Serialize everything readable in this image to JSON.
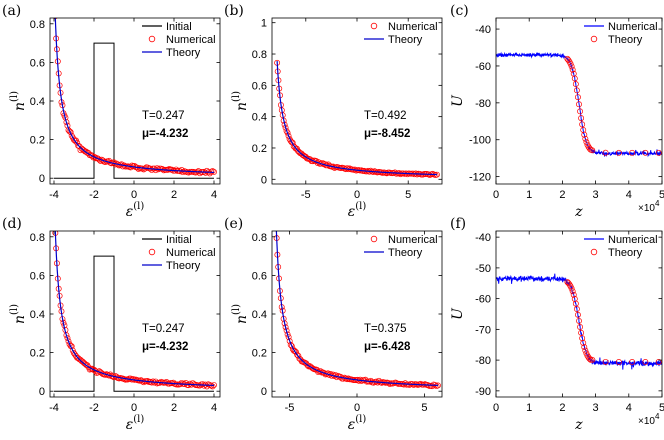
{
  "chart_data": [
    {
      "id": "a",
      "panel_label": "(a)",
      "type": "line+scatter",
      "xlabel": "ε(l)",
      "xlabel_main": "ε",
      "xlabel_sup": "(l)",
      "ylabel": "n(l)",
      "ylabel_main": "n",
      "ylabel_sup": "(l)",
      "xlim": [
        -4.2,
        4.3
      ],
      "ylim": [
        -0.03,
        0.83
      ],
      "xticks": [
        -4,
        -2,
        0,
        2,
        4
      ],
      "xtick_labels": [
        "-4",
        "-2",
        "0",
        "2",
        "4"
      ],
      "yticks": [
        0,
        0.2,
        0.4,
        0.6,
        0.8
      ],
      "ytick_labels": [
        "0",
        "0.2",
        "0.4",
        "0.6",
        "0.8"
      ],
      "theory": {
        "T": 0.247,
        "mu": -4.232,
        "xmin": -4,
        "xmax": 4
      },
      "numerical_samples": 130,
      "numerical_noise": 0.006,
      "initial": {
        "x": [
          -4,
          -2,
          -2,
          -1,
          -1,
          4
        ],
        "y": [
          0,
          0,
          0.7,
          0.7,
          0,
          0
        ]
      },
      "legend": [
        {
          "label": "Initial",
          "kind": "line",
          "color": "#000000"
        },
        {
          "label": "Numerical",
          "kind": "circle",
          "color": "#ff0000"
        },
        {
          "label": "Theory",
          "kind": "line",
          "color": "#0000cc"
        }
      ],
      "annotations": [
        "T=0.247",
        "μ=-4.232"
      ]
    },
    {
      "id": "b",
      "panel_label": "(b)",
      "type": "line+scatter",
      "xlabel": "ε(l)",
      "xlabel_main": "ε",
      "xlabel_sup": "(l)",
      "ylabel": "n(l)",
      "ylabel_main": "n",
      "ylabel_sup": "(l)",
      "xlim": [
        -8.3,
        8.3
      ],
      "ylim": [
        -0.03,
        1.03
      ],
      "xticks": [
        -5,
        0,
        5
      ],
      "xtick_labels": [
        "-5",
        "0",
        "5"
      ],
      "yticks": [
        0,
        0.2,
        0.4,
        0.6,
        0.8,
        1
      ],
      "ytick_labels": [
        "0",
        "0.2",
        "0.4",
        "0.6",
        "0.8",
        "1"
      ],
      "theory": {
        "T": 0.492,
        "mu": -8.452,
        "xmin": -7.8,
        "xmax": 7.8
      },
      "numerical_samples": 130,
      "numerical_noise": 0.005,
      "legend": [
        {
          "label": "Numerical",
          "kind": "circle",
          "color": "#ff0000"
        },
        {
          "label": "Theory",
          "kind": "line",
          "color": "#0000cc"
        }
      ],
      "annotations": [
        "T=0.492",
        "μ=-8.452"
      ]
    },
    {
      "id": "c",
      "panel_label": "(c)",
      "type": "line+scatter",
      "xlabel": "z",
      "xlabel_main": "z",
      "xlabel_sup": "",
      "ylabel": "U",
      "ylabel_main": "U",
      "ylabel_sup": "",
      "xlim": [
        0,
        50000
      ],
      "ylim": [
        -124,
        -34
      ],
      "xticks": [
        0,
        10000,
        20000,
        30000,
        40000,
        50000
      ],
      "xtick_labels": [
        "0",
        "1",
        "2",
        "3",
        "4",
        "5"
      ],
      "x_multiplier": "×10",
      "x_multiplier_exp": "4",
      "yticks": [
        -120,
        -100,
        -80,
        -60,
        -40
      ],
      "ytick_labels": [
        "-120",
        "-100",
        "-80",
        "-60",
        "-40"
      ],
      "step": {
        "left": -54,
        "right": -107.5,
        "center": 25000,
        "width": 1100
      },
      "numerical_noise": 0.8,
      "theory_samples": 23,
      "legend": [
        {
          "label": "Numerical",
          "kind": "line",
          "color": "#0000ff"
        },
        {
          "label": "Theory",
          "kind": "circle",
          "color": "#ff0000"
        }
      ]
    },
    {
      "id": "d",
      "panel_label": "(d)",
      "type": "line+scatter",
      "xlabel": "ε(l)",
      "xlabel_main": "ε",
      "xlabel_sup": "(l)",
      "ylabel": "n(l)",
      "ylabel_main": "n",
      "ylabel_sup": "(l)",
      "xlim": [
        -4.2,
        4.3
      ],
      "ylim": [
        -0.03,
        0.83
      ],
      "xticks": [
        -4,
        -2,
        0,
        2,
        4
      ],
      "xtick_labels": [
        "-4",
        "-2",
        "0",
        "2",
        "4"
      ],
      "yticks": [
        0,
        0.2,
        0.4,
        0.6,
        0.8
      ],
      "ytick_labels": [
        "0",
        "0.2",
        "0.4",
        "0.6",
        "0.8"
      ],
      "theory": {
        "T": 0.247,
        "mu": -4.232,
        "xmin": -4,
        "xmax": 4
      },
      "numerical_samples": 130,
      "numerical_noise": 0.006,
      "initial": {
        "x": [
          -4,
          -2,
          -2,
          -1,
          -1,
          4
        ],
        "y": [
          0,
          0,
          0.7,
          0.7,
          0,
          0
        ]
      },
      "legend": [
        {
          "label": "Initial",
          "kind": "line",
          "color": "#000000"
        },
        {
          "label": "Numerical",
          "kind": "circle",
          "color": "#ff0000"
        },
        {
          "label": "Theory",
          "kind": "line",
          "color": "#0000cc"
        }
      ],
      "annotations": [
        "T=0.247",
        "μ=-4.232"
      ]
    },
    {
      "id": "e",
      "panel_label": "(e)",
      "type": "line+scatter",
      "xlabel": "ε(l)",
      "xlabel_main": "ε",
      "xlabel_sup": "(l)",
      "ylabel": "n(l)",
      "ylabel_main": "n",
      "ylabel_sup": "(l)",
      "xlim": [
        -6.3,
        6.3
      ],
      "ylim": [
        -0.03,
        0.83
      ],
      "xticks": [
        -5,
        0,
        5
      ],
      "xtick_labels": [
        "-5",
        "0",
        "5"
      ],
      "yticks": [
        0,
        0.2,
        0.4,
        0.6,
        0.8
      ],
      "ytick_labels": [
        "0",
        "0.2",
        "0.4",
        "0.6",
        "0.8"
      ],
      "theory": {
        "T": 0.375,
        "mu": -6.428,
        "xmin": -6,
        "xmax": 6
      },
      "numerical_samples": 130,
      "numerical_noise": 0.005,
      "legend": [
        {
          "label": "Numerical",
          "kind": "circle",
          "color": "#ff0000"
        },
        {
          "label": "Theory",
          "kind": "line",
          "color": "#0000cc"
        }
      ],
      "annotations": [
        "T=0.375",
        "μ=-6.428"
      ]
    },
    {
      "id": "f",
      "panel_label": "(f)",
      "type": "line+scatter",
      "xlabel": "z",
      "xlabel_main": "z",
      "xlabel_sup": "",
      "ylabel": "U",
      "ylabel_main": "U",
      "ylabel_sup": "",
      "xlim": [
        0,
        50000
      ],
      "ylim": [
        -92,
        -38
      ],
      "xticks": [
        0,
        10000,
        20000,
        30000,
        40000,
        50000
      ],
      "xtick_labels": [
        "0",
        "1",
        "2",
        "3",
        "4",
        "5"
      ],
      "x_multiplier": "×10",
      "x_multiplier_exp": "4",
      "yticks": [
        -90,
        -80,
        -70,
        -60,
        -50,
        -40
      ],
      "ytick_labels": [
        "-90",
        "-80",
        "-70",
        "-60",
        "-50",
        "-40"
      ],
      "step": {
        "left": -53.5,
        "right": -81,
        "center": 25000,
        "width": 1100
      },
      "numerical_noise": 0.7,
      "theory_samples": 23,
      "legend": [
        {
          "label": "Numerical",
          "kind": "line",
          "color": "#0000ff"
        },
        {
          "label": "Theory",
          "kind": "circle",
          "color": "#ff0000"
        }
      ]
    }
  ]
}
